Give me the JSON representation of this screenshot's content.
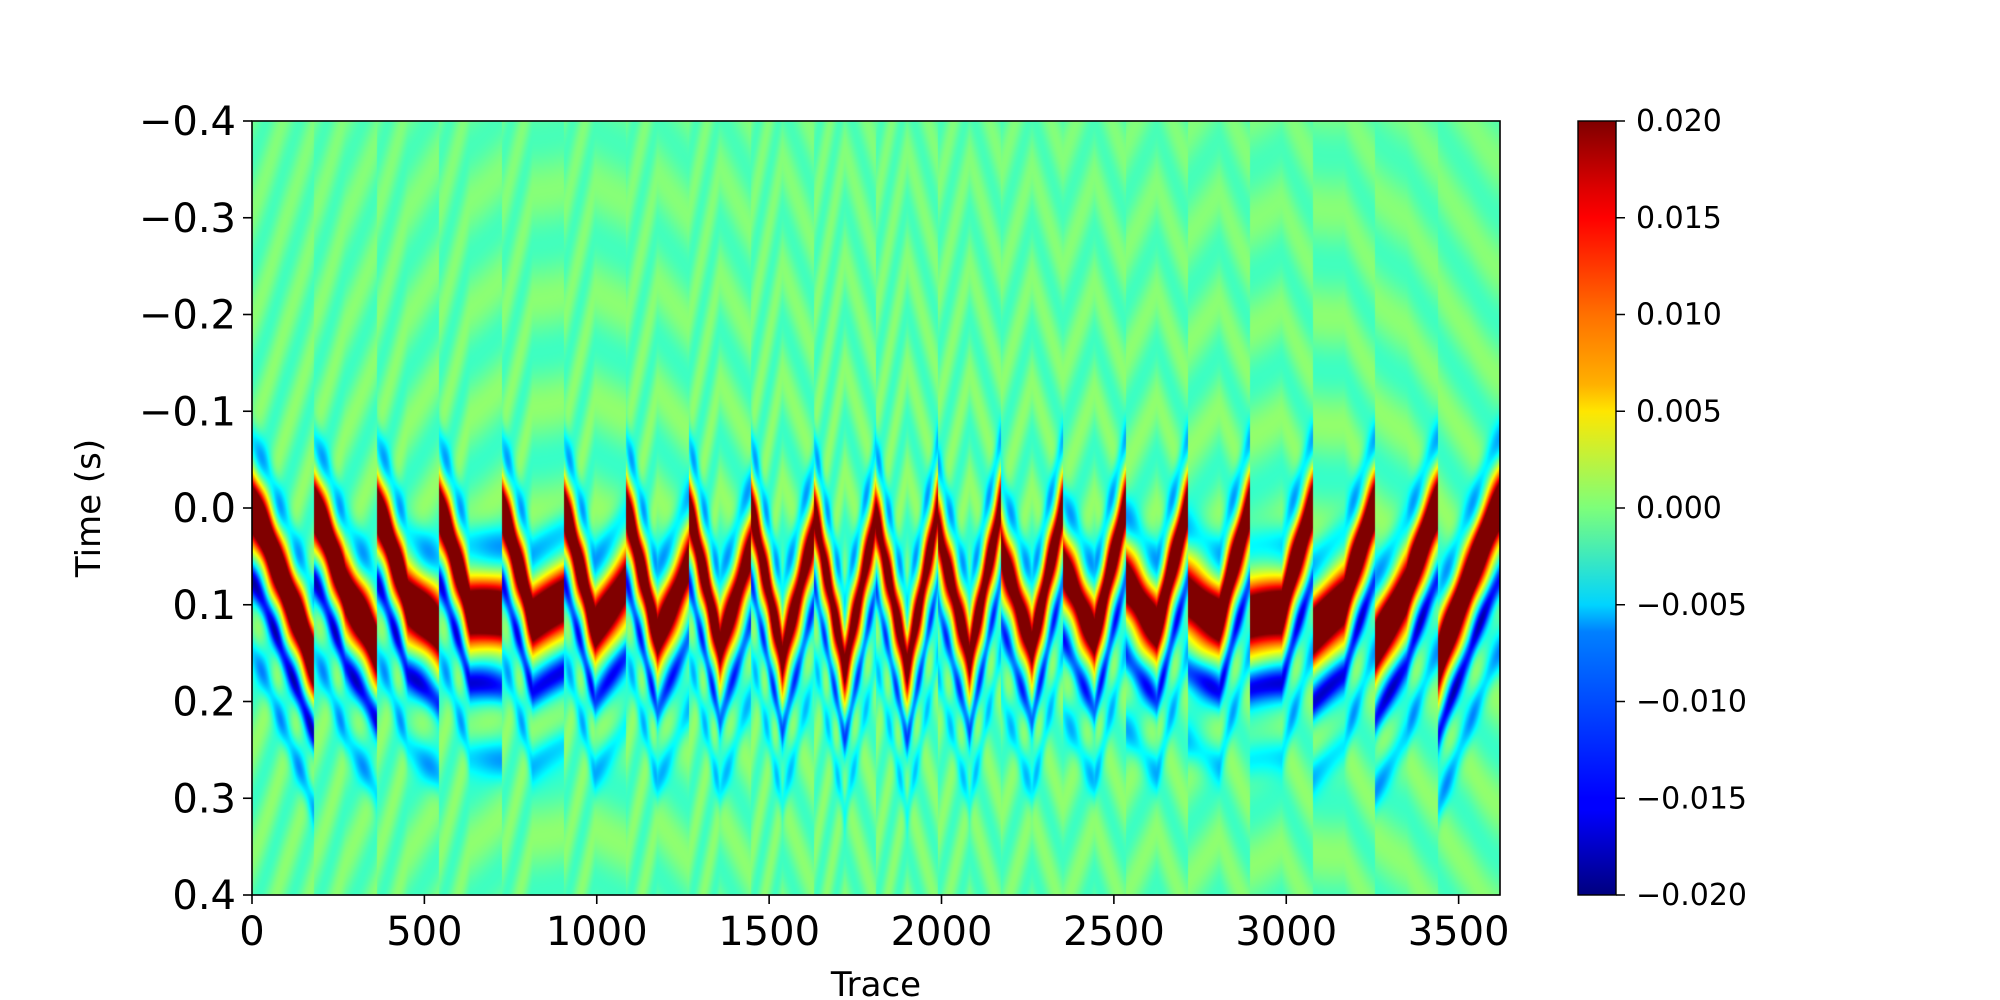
{
  "chart_data": {
    "type": "heatmap",
    "title": "",
    "xlabel": "Trace",
    "ylabel": "Time (s)",
    "xlim": [
      0,
      3620
    ],
    "ylim": [
      0.4,
      -0.4
    ],
    "x_ticks": [
      0,
      500,
      1000,
      1500,
      2000,
      2500,
      3000,
      3500
    ],
    "x_tick_labels": [
      "0",
      "500",
      "1000",
      "1500",
      "2000",
      "2500",
      "3000",
      "3500"
    ],
    "y_ticks": [
      -0.4,
      -0.3,
      -0.2,
      -0.1,
      0.0,
      0.1,
      0.2,
      0.3,
      0.4
    ],
    "y_tick_labels": [
      "−0.4",
      "−0.3",
      "−0.2",
      "−0.1",
      "0.0",
      "0.1",
      "0.2",
      "0.3",
      "0.4"
    ],
    "colormap": "jet",
    "colorbar": {
      "vmin": -0.02,
      "vmax": 0.02,
      "ticks": [
        0.02,
        0.015,
        0.01,
        0.005,
        0.0,
        -0.005,
        -0.01,
        -0.015,
        -0.02
      ],
      "tick_labels": [
        "0.020",
        "0.015",
        "0.010",
        "0.005",
        "0.000",
        "−0.005",
        "−0.010",
        "−0.015",
        "−0.020"
      ]
    },
    "grid": false,
    "description_of_field": {
      "shot_gathers": 20,
      "traces_per_gather": 181,
      "event_apex_time_s": 0.0,
      "event_max_time_s": 0.17,
      "symmetry_center_trace": 1810
    }
  }
}
